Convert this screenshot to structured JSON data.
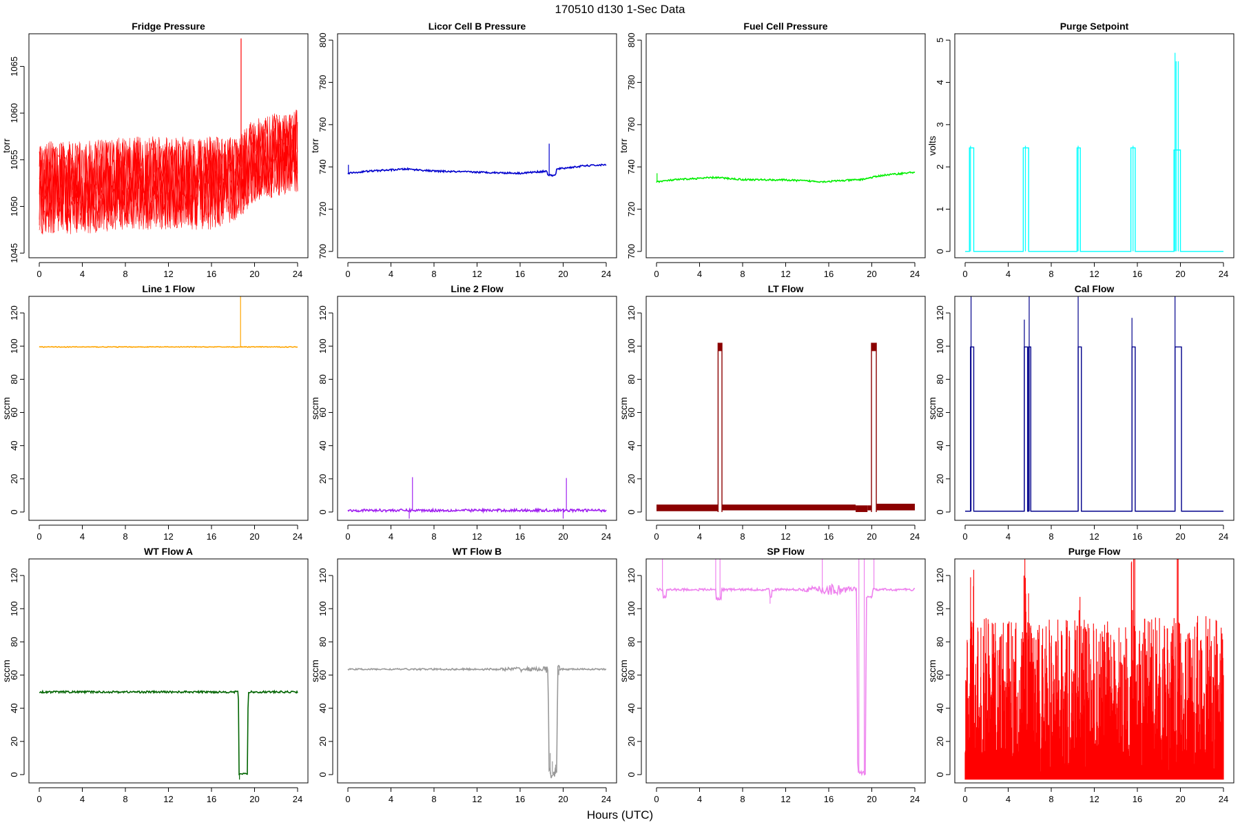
{
  "figure": {
    "title": "170510   d130   1-Sec Data",
    "xlabel": "Hours (UTC)"
  },
  "chart_data": [
    {
      "type": "line",
      "title": "Fridge Pressure",
      "ylabel": "torr",
      "color": "#ff0000",
      "xlim": [
        0,
        24
      ],
      "ylim": [
        1044.5,
        1068.5
      ],
      "xticks": [
        0,
        4,
        8,
        12,
        16,
        20,
        24
      ],
      "yticks": [
        1045,
        1050,
        1055,
        1060,
        1065
      ],
      "series": [
        {
          "style": "noisy",
          "points": [
            [
              0,
              1052
            ],
            [
              4,
              1052
            ],
            [
              8,
              1052.5
            ],
            [
              12,
              1052.5
            ],
            [
              16,
              1052.5
            ],
            [
              18.5,
              1053
            ],
            [
              20,
              1055
            ],
            [
              24,
              1056
            ]
          ],
          "noise": [
            [
              0,
              5
            ],
            [
              16,
              5
            ],
            [
              18.5,
              4.5
            ],
            [
              20,
              4.5
            ],
            [
              24,
              4.5
            ]
          ],
          "spikes": [
            [
              18.75,
              1068
            ]
          ]
        }
      ]
    },
    {
      "type": "line",
      "title": "Licor Cell B Pressure",
      "ylabel": "torr",
      "color": "#0000cd",
      "xlim": [
        0,
        24
      ],
      "ylim": [
        697,
        803
      ],
      "xticks": [
        0,
        4,
        8,
        12,
        16,
        20,
        24
      ],
      "yticks": [
        700,
        720,
        740,
        760,
        780,
        800
      ],
      "series": [
        {
          "style": "line",
          "points": [
            [
              0,
              737
            ],
            [
              2,
              738
            ],
            [
              5.5,
              739
            ],
            [
              8,
              738
            ],
            [
              12,
              737.5
            ],
            [
              16,
              737
            ],
            [
              18.5,
              738
            ],
            [
              18.6,
              736
            ],
            [
              19.3,
              736
            ],
            [
              19.4,
              739
            ],
            [
              22,
              740.5
            ],
            [
              24,
              741
            ]
          ],
          "noise": [
            [
              0,
              0.4
            ],
            [
              24,
              0.4
            ]
          ],
          "spikes": [
            [
              0.05,
              741
            ],
            [
              18.7,
              751
            ]
          ]
        }
      ]
    },
    {
      "type": "line",
      "title": "Fuel Cell Pressure",
      "ylabel": "torr",
      "color": "#00ee00",
      "xlim": [
        0,
        24
      ],
      "ylim": [
        697,
        803
      ],
      "xticks": [
        0,
        4,
        8,
        12,
        16,
        20,
        24
      ],
      "yticks": [
        700,
        720,
        740,
        760,
        780,
        800
      ],
      "series": [
        {
          "style": "line",
          "points": [
            [
              0,
              733
            ],
            [
              2,
              734
            ],
            [
              5.5,
              735
            ],
            [
              8,
              734
            ],
            [
              12,
              733.8
            ],
            [
              15.5,
              733
            ],
            [
              19,
              734
            ],
            [
              21,
              736
            ],
            [
              24,
              737.5
            ]
          ],
          "noise": [
            [
              0,
              0.4
            ],
            [
              24,
              0.4
            ]
          ],
          "spikes": [
            [
              0.05,
              737
            ]
          ]
        }
      ]
    },
    {
      "type": "line",
      "title": "Purge Setpoint",
      "ylabel": "volts",
      "color": "#00ffff",
      "xlim": [
        0,
        24
      ],
      "ylim": [
        -0.15,
        5.15
      ],
      "xticks": [
        0,
        4,
        8,
        12,
        16,
        20,
        24
      ],
      "yticks": [
        0,
        1,
        2,
        3,
        4,
        5
      ],
      "series": [
        {
          "style": "pulses",
          "baseline": 0,
          "pulses": [
            [
              0.4,
              0.8,
              2.45
            ],
            [
              5.4,
              5.9,
              2.45
            ],
            [
              10.4,
              10.7,
              2.45
            ],
            [
              15.4,
              15.8,
              2.45
            ],
            [
              19.4,
              20,
              2.4
            ]
          ],
          "spikes": [
            [
              0.5,
              2.5
            ],
            [
              5.6,
              2.5
            ],
            [
              10.5,
              2.5
            ],
            [
              15.6,
              2.5
            ],
            [
              19.5,
              4.7
            ],
            [
              19.6,
              4.5
            ],
            [
              19.8,
              4.5
            ]
          ]
        }
      ]
    },
    {
      "type": "line",
      "title": "Line 1 Flow",
      "ylabel": "sccm",
      "color": "#ffa500",
      "xlim": [
        0,
        24
      ],
      "ylim": [
        -5,
        130
      ],
      "xticks": [
        0,
        4,
        8,
        12,
        16,
        20,
        24
      ],
      "yticks": [
        0,
        20,
        40,
        60,
        80,
        100,
        120
      ],
      "series": [
        {
          "style": "line",
          "points": [
            [
              0,
              99.5
            ],
            [
              24,
              99.5
            ]
          ],
          "noise": [
            [
              0,
              0.2
            ],
            [
              24,
              0.2
            ]
          ],
          "spikes": [
            [
              18.7,
              130
            ]
          ]
        }
      ]
    },
    {
      "type": "line",
      "title": "Line 2 Flow",
      "ylabel": "sccm",
      "color": "#a020f0",
      "xlim": [
        0,
        24
      ],
      "ylim": [
        -5,
        130
      ],
      "xticks": [
        0,
        4,
        8,
        12,
        16,
        20,
        24
      ],
      "yticks": [
        0,
        20,
        40,
        60,
        80,
        100,
        120
      ],
      "series": [
        {
          "style": "line",
          "points": [
            [
              0,
              1
            ],
            [
              24,
              1
            ]
          ],
          "noise": [
            [
              0,
              0.8
            ],
            [
              24,
              0.8
            ]
          ],
          "spikes": [
            [
              6,
              21
            ],
            [
              5.7,
              -4
            ],
            [
              20.3,
              20.5
            ],
            [
              20,
              -4
            ]
          ]
        }
      ]
    },
    {
      "type": "line",
      "title": "LT Flow",
      "ylabel": "sccm",
      "color": "#8b0000",
      "xlim": [
        0,
        24
      ],
      "ylim": [
        -5,
        130
      ],
      "xticks": [
        0,
        4,
        8,
        12,
        16,
        20,
        24
      ],
      "yticks": [
        0,
        20,
        40,
        60,
        80,
        100,
        120
      ],
      "series": [
        {
          "style": "band",
          "bands": [
            [
              0,
              5.7,
              0.5,
              4.5
            ],
            [
              5.75,
              6.05,
              97,
              102
            ],
            [
              6.1,
              18.5,
              1,
              4.5
            ],
            [
              18.5,
              19.6,
              0,
              4
            ],
            [
              19.6,
              19.95,
              1,
              4
            ],
            [
              20,
              20.4,
              97,
              102
            ],
            [
              20.45,
              24,
              1,
              5
            ]
          ],
          "edges": [
            [
              5.72,
              0,
              102
            ],
            [
              6.08,
              0,
              102
            ],
            [
              19.97,
              0,
              102
            ],
            [
              20.42,
              0,
              102
            ]
          ]
        }
      ]
    },
    {
      "type": "line",
      "title": "Cal Flow",
      "ylabel": "sccm",
      "color": "#00008b",
      "xlim": [
        0,
        24
      ],
      "ylim": [
        -5,
        130
      ],
      "xticks": [
        0,
        4,
        8,
        12,
        16,
        20,
        24
      ],
      "yticks": [
        0,
        20,
        40,
        60,
        80,
        100,
        120
      ],
      "series": [
        {
          "style": "pulses",
          "baseline": 0.5,
          "pulses": [
            [
              0.5,
              0.8,
              99.5
            ],
            [
              5.5,
              5.8,
              99.5
            ],
            [
              5.9,
              6.1,
              99.5
            ],
            [
              10.5,
              10.8,
              99.5
            ],
            [
              15.5,
              15.8,
              99.5
            ],
            [
              19.5,
              20.1,
              99.5
            ]
          ],
          "spikes": [
            [
              0.55,
              130
            ],
            [
              5.5,
              116
            ],
            [
              5.95,
              130
            ],
            [
              10.5,
              130
            ],
            [
              15.5,
              117
            ],
            [
              19.5,
              130
            ]
          ]
        }
      ]
    },
    {
      "type": "line",
      "title": "WT Flow A",
      "ylabel": "sccm",
      "color": "#006400",
      "xlim": [
        0,
        24
      ],
      "ylim": [
        -5,
        130
      ],
      "xticks": [
        0,
        4,
        8,
        12,
        16,
        20,
        24
      ],
      "yticks": [
        0,
        20,
        40,
        60,
        80,
        100,
        120
      ],
      "series": [
        {
          "style": "line",
          "points": [
            [
              0,
              49.8
            ],
            [
              18.5,
              49.8
            ],
            [
              18.55,
              0.5
            ],
            [
              19.35,
              0.5
            ],
            [
              19.4,
              49.8
            ],
            [
              24,
              49.8
            ]
          ],
          "noise": [
            [
              0,
              0.6
            ],
            [
              24,
              0.6
            ]
          ],
          "spikes": [
            [
              18.6,
              -3
            ]
          ]
        }
      ]
    },
    {
      "type": "line",
      "title": "WT Flow B",
      "ylabel": "sccm",
      "color": "#999999",
      "xlim": [
        0,
        24
      ],
      "ylim": [
        -5,
        130
      ],
      "xticks": [
        0,
        4,
        8,
        12,
        16,
        20,
        24
      ],
      "yticks": [
        0,
        20,
        40,
        60,
        80,
        100,
        120
      ],
      "series": [
        {
          "style": "line",
          "points": [
            [
              0,
              63.5
            ],
            [
              18.6,
              63.5
            ],
            [
              18.7,
              0.5
            ],
            [
              19.4,
              0.5
            ],
            [
              19.5,
              63.5
            ],
            [
              24,
              63.5
            ]
          ],
          "noise": [
            [
              0,
              0.4
            ],
            [
              14,
              0.6
            ],
            [
              15.5,
              1.5
            ],
            [
              18,
              1
            ],
            [
              18.7,
              3
            ],
            [
              19.4,
              3
            ],
            [
              20,
              0.5
            ],
            [
              24,
              0.4
            ]
          ],
          "spikes": [
            [
              18.8,
              13
            ],
            [
              19.0,
              8
            ],
            [
              19.3,
              6
            ],
            [
              19.6,
              60
            ]
          ]
        }
      ]
    },
    {
      "type": "line",
      "title": "SP Flow",
      "ylabel": "sccm",
      "color": "#ee82ee",
      "xlim": [
        0,
        24
      ],
      "ylim": [
        -5,
        130
      ],
      "xticks": [
        0,
        4,
        8,
        12,
        16,
        20,
        24
      ],
      "yticks": [
        0,
        20,
        40,
        60,
        80,
        100,
        120
      ],
      "series": [
        {
          "style": "line",
          "points": [
            [
              0,
              111.5
            ],
            [
              0.6,
              111.5
            ],
            [
              0.6,
              107
            ],
            [
              0.9,
              107
            ],
            [
              0.9,
              111.5
            ],
            [
              5.5,
              111.5
            ],
            [
              5.5,
              106
            ],
            [
              6.0,
              106
            ],
            [
              6.0,
              111.5
            ],
            [
              10.5,
              111.5
            ],
            [
              10.5,
              107
            ],
            [
              10.7,
              107
            ],
            [
              10.7,
              111.5
            ],
            [
              18.6,
              111.5
            ],
            [
              18.7,
              1
            ],
            [
              19.4,
              1
            ],
            [
              19.5,
              107
            ],
            [
              20.0,
              107
            ],
            [
              20.1,
              111.5
            ],
            [
              24,
              111.5
            ]
          ],
          "noise": [
            [
              0,
              0.7
            ],
            [
              13.5,
              0.7
            ],
            [
              14.5,
              2
            ],
            [
              15.5,
              3.5
            ],
            [
              17,
              3.5
            ],
            [
              18.5,
              1.5
            ],
            [
              20,
              0.7
            ],
            [
              24,
              0.7
            ]
          ],
          "spikes": [
            [
              0.55,
              130
            ],
            [
              5.5,
              130
            ],
            [
              5.9,
              130
            ],
            [
              10.55,
              103
            ],
            [
              15.4,
              130
            ],
            [
              18.8,
              130
            ],
            [
              19.3,
              130
            ],
            [
              20.2,
              130
            ]
          ]
        }
      ]
    },
    {
      "type": "line",
      "title": "Purge Flow",
      "ylabel": "sccm",
      "color": "#ff0000",
      "xlim": [
        0,
        24
      ],
      "ylim": [
        -5,
        130
      ],
      "xticks": [
        0,
        4,
        8,
        12,
        16,
        20,
        24
      ],
      "yticks": [
        0,
        20,
        40,
        60,
        80,
        100,
        120
      ],
      "series": [
        {
          "style": "dense",
          "low": -3,
          "envelope": [
            [
              0,
              85
            ],
            [
              2,
              95
            ],
            [
              5,
              92
            ],
            [
              10,
              95
            ],
            [
              15,
              93
            ],
            [
              19,
              97
            ],
            [
              24,
              95
            ]
          ],
          "bursts": [
            [
              0.5,
              0.8
            ],
            [
              5.4,
              5.9
            ],
            [
              10.4,
              10.7
            ],
            [
              15.4,
              15.8
            ],
            [
              19.4,
              20.0
            ]
          ]
        }
      ]
    }
  ]
}
